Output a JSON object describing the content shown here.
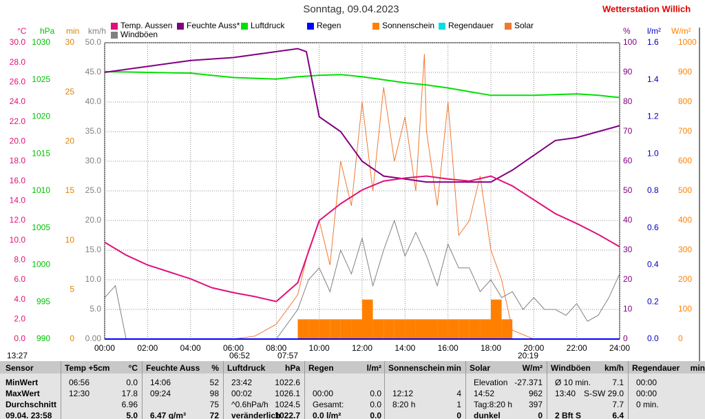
{
  "chart_data": {
    "type": "line",
    "title": "Sonntag, 09.04.2023",
    "subtitle": "Wetterstation Willich",
    "xlim": [
      0,
      24
    ],
    "xticks": [
      {
        "value": 0,
        "label": "00:00"
      },
      {
        "value": 2,
        "label": "02:00"
      },
      {
        "value": 4,
        "label": "04:00"
      },
      {
        "value": 6,
        "label": "06:00"
      },
      {
        "value": 8,
        "label": "08:00"
      },
      {
        "value": 10,
        "label": "10:00"
      },
      {
        "value": 12,
        "label": "12:00"
      },
      {
        "value": 14,
        "label": "14:00"
      },
      {
        "value": 16,
        "label": "16:00"
      },
      {
        "value": 18,
        "label": "18:00"
      },
      {
        "value": 20,
        "label": "20:00"
      },
      {
        "value": 22,
        "label": "22:00"
      },
      {
        "value": 24,
        "label": "24:00"
      }
    ],
    "grid": true,
    "yaxes": [
      {
        "unit": "°C",
        "color": "#e0107a",
        "ylim": [
          0,
          30
        ],
        "yticks": [
          {
            "value": 0,
            "label": "0.0"
          },
          {
            "value": 2,
            "label": "2.0"
          },
          {
            "value": 4,
            "label": "4.0"
          },
          {
            "value": 6,
            "label": "6.0"
          },
          {
            "value": 8,
            "label": "8.0"
          },
          {
            "value": 10,
            "label": "10.0"
          },
          {
            "value": 12,
            "label": "12.0"
          },
          {
            "value": 14,
            "label": "14.0"
          },
          {
            "value": 16,
            "label": "16.0"
          },
          {
            "value": 18,
            "label": "18.0"
          },
          {
            "value": 20,
            "label": "20.0"
          },
          {
            "value": 22,
            "label": "22.0"
          },
          {
            "value": 24,
            "label": "24.0"
          },
          {
            "value": 26,
            "label": "26.0"
          },
          {
            "value": 28,
            "label": "28.0"
          },
          {
            "value": 30,
            "label": "30.0"
          }
        ]
      },
      {
        "unit": "hPa",
        "color": "#00c000",
        "ylim": [
          990,
          1030
        ],
        "yticks": [
          990,
          995,
          1000,
          1005,
          1010,
          1015,
          1020,
          1025,
          1030
        ]
      },
      {
        "unit": "min",
        "color": "#e08000",
        "ylim": [
          0,
          30
        ],
        "yticks": [
          0,
          5,
          10,
          15,
          20,
          25,
          30
        ]
      },
      {
        "unit": "km/h",
        "color": "#808080",
        "ylim": [
          0,
          50
        ],
        "yticks": [
          {
            "value": 0,
            "label": "0.00"
          },
          {
            "value": 5,
            "label": "5.0"
          },
          {
            "value": 10,
            "label": "10.0"
          },
          {
            "value": 15,
            "label": "15.0"
          },
          {
            "value": 20,
            "label": "20.0"
          },
          {
            "value": 25,
            "label": "25.0"
          },
          {
            "value": 30,
            "label": "30.0"
          },
          {
            "value": 35,
            "label": "35.0"
          },
          {
            "value": 40,
            "label": "40.0"
          },
          {
            "value": 45,
            "label": "45.0"
          },
          {
            "value": 50,
            "label": "50.0"
          }
        ]
      },
      {
        "unit": "%",
        "color": "#800080",
        "ylim": [
          0,
          100
        ],
        "yticks": [
          0,
          10,
          20,
          30,
          40,
          50,
          60,
          70,
          80,
          90,
          100
        ]
      },
      {
        "unit": "l/m²",
        "color": "#0000c0",
        "ylim": [
          0,
          1.6
        ],
        "yticks": [
          {
            "value": 0,
            "label": "0.0"
          },
          {
            "value": 0.2,
            "label": "0.2"
          },
          {
            "value": 0.4,
            "label": "0.4"
          },
          {
            "value": 0.6,
            "label": "0.6"
          },
          {
            "value": 0.8,
            "label": "0.8"
          },
          {
            "value": 1.0,
            "label": "1.0"
          },
          {
            "value": 1.2,
            "label": "1.2"
          },
          {
            "value": 1.4,
            "label": "1.4"
          },
          {
            "value": 1.6,
            "label": "1.6"
          }
        ]
      },
      {
        "unit": "W/m²",
        "color": "#ff8000",
        "ylim": [
          0,
          1000
        ],
        "yticks": [
          0,
          100,
          200,
          300,
          400,
          500,
          600,
          700,
          800,
          900,
          1000
        ]
      }
    ],
    "series": [
      {
        "name": "Sonnenschein",
        "color": "#ff8000",
        "axis": 2,
        "kind": "bar",
        "x": [
          9,
          9.5,
          10,
          10.5,
          11,
          11.5,
          12,
          12.5,
          13,
          13.5,
          14,
          14.5,
          15,
          15.5,
          16,
          16.5,
          17,
          17.5,
          18,
          18.5
        ],
        "values": [
          2,
          2,
          2,
          2,
          2,
          2,
          4,
          2,
          2,
          2,
          2,
          2,
          2,
          2,
          2,
          2,
          2,
          2,
          4,
          2
        ]
      },
      {
        "name": "Solar",
        "color": "#f07830",
        "axis": 6,
        "x": [
          0,
          6,
          7,
          8,
          9,
          9.5,
          10,
          10.5,
          11,
          11.5,
          12,
          12.5,
          13,
          13.5,
          14,
          14.5,
          14.9,
          15,
          15.5,
          16,
          16.5,
          17,
          17.5,
          18,
          18.5,
          19,
          20,
          24
        ],
        "values": [
          0,
          0,
          10,
          50,
          150,
          300,
          400,
          250,
          600,
          450,
          800,
          500,
          850,
          600,
          750,
          500,
          962,
          700,
          450,
          800,
          350,
          400,
          550,
          300,
          200,
          30,
          0,
          0
        ]
      },
      {
        "name": "Windböen",
        "color": "#808080",
        "axis": 3,
        "x": [
          0,
          0.5,
          1,
          2,
          3,
          4,
          5,
          6,
          7,
          8,
          9,
          9.5,
          10,
          10.5,
          11,
          11.5,
          12,
          12.5,
          13,
          13.5,
          14,
          14.5,
          15,
          15.5,
          16,
          16.5,
          17,
          17.5,
          18,
          18.5,
          19,
          19.5,
          20,
          20.5,
          21,
          21.5,
          22,
          22.5,
          23,
          23.5,
          24
        ],
        "values": [
          7,
          9,
          0,
          0,
          0,
          0,
          0,
          0,
          0,
          0,
          5,
          10,
          12,
          8,
          15,
          11,
          17,
          9,
          15,
          20,
          14,
          18,
          14,
          9,
          16,
          12,
          12,
          8,
          10,
          7,
          8,
          5,
          7,
          5,
          5,
          4,
          6,
          3,
          4,
          7,
          11
        ]
      },
      {
        "name": "Regendauer",
        "color": "#00e0e0",
        "axis": 2,
        "x": [
          0,
          24
        ],
        "values": [
          0,
          0
        ]
      },
      {
        "name": "Regen",
        "color": "#0000ff",
        "axis": 5,
        "x": [
          0,
          24
        ],
        "values": [
          0,
          0
        ]
      },
      {
        "name": "Luftdruck",
        "color": "#00e000",
        "axis": 1,
        "x": [
          0,
          2,
          4,
          6,
          7,
          8,
          9,
          10,
          11,
          12,
          13,
          14,
          15,
          16,
          17,
          18,
          19,
          20,
          21,
          22,
          23,
          24
        ],
        "values": [
          1026.1,
          1026.0,
          1025.9,
          1025.3,
          1025.2,
          1025.1,
          1025.4,
          1025.6,
          1025.7,
          1025.4,
          1025.0,
          1024.6,
          1024.3,
          1023.9,
          1023.4,
          1022.9,
          1022.9,
          1022.9,
          1023.0,
          1023.1,
          1022.9,
          1022.6
        ]
      },
      {
        "name": "Feuchte Auss*",
        "color": "#800080",
        "axis": 4,
        "x": [
          0,
          2,
          4,
          6,
          8,
          9,
          9.4,
          10,
          11,
          12,
          13,
          14,
          15,
          16,
          17,
          18,
          19,
          20,
          21,
          22,
          23,
          24
        ],
        "values": [
          90,
          92,
          94,
          95,
          97,
          98,
          97,
          75,
          70,
          60,
          55,
          54,
          53,
          53,
          53,
          53,
          57,
          62,
          67,
          68,
          70,
          72
        ]
      },
      {
        "name": "Temp. Aussen",
        "color": "#e0107a",
        "axis": 0,
        "x": [
          0,
          1,
          2,
          3,
          4,
          5,
          6,
          7,
          8,
          9,
          10,
          11,
          12,
          13,
          14,
          15,
          16,
          17,
          18,
          19,
          20,
          21,
          22,
          23,
          24
        ],
        "values": [
          9.8,
          8.5,
          7.5,
          6.8,
          6.1,
          5.2,
          4.7,
          4.3,
          3.8,
          5.7,
          12.0,
          13.7,
          15.1,
          16.0,
          16.3,
          16.5,
          16.2,
          16.0,
          16.5,
          15.5,
          14.1,
          12.7,
          11.7,
          10.6,
          9.35
        ]
      }
    ],
    "legend_order": [
      "Temp. Aussen",
      "Feuchte Auss*",
      "Luftdruck",
      "Regen",
      "Sonnenschein",
      "Regendauer",
      "Solar",
      "Windböen"
    ],
    "annotations": [
      "13:27",
      "06:52",
      "07:57",
      "20:19"
    ]
  },
  "table": {
    "header": [
      "Sensor",
      "Temp +5cm",
      "°C",
      "Feuchte Auss",
      "%",
      "Luftdruck",
      "hPa",
      "Regen",
      "l/m²",
      "Sonnenschein",
      "min",
      "Solar",
      "W/m²",
      "Windböen",
      "km/h",
      "Regendauer",
      "min"
    ],
    "rows": [
      [
        "MinWert",
        "06:56",
        "0.0",
        "14:06",
        "52",
        "23:42",
        "1022.6",
        null,
        null,
        null,
        null,
        "Elevation",
        "-27.371",
        "Ø 10 min.",
        "7.1",
        "00:00",
        null
      ],
      [
        "MaxWert",
        "12:30",
        "17.8",
        "09:24",
        "98",
        "00:02",
        "1026.1",
        "00:00",
        "0.0",
        "12:12",
        "4",
        "14:52",
        "962",
        "13:40",
        "S-SW 29.0",
        "00:00",
        null
      ],
      [
        "Durchschnitt",
        null,
        "6.96",
        null,
        "75",
        "^0.6hPa/h",
        "1024.5",
        "Gesamt:",
        "0.0",
        "8:20 h",
        "1",
        "Tag:8:20 h",
        "397",
        null,
        "7.7",
        "0 min.",
        null
      ],
      [
        "09.04. 23:58",
        null,
        "5.0",
        "6.47 g/m³",
        "72",
        "veränderlich",
        "1022.7",
        "0.0 l/m²",
        "0.0",
        null,
        "0",
        "dunkel",
        "0",
        "2 Bft S",
        "6.4",
        null,
        null
      ]
    ]
  }
}
